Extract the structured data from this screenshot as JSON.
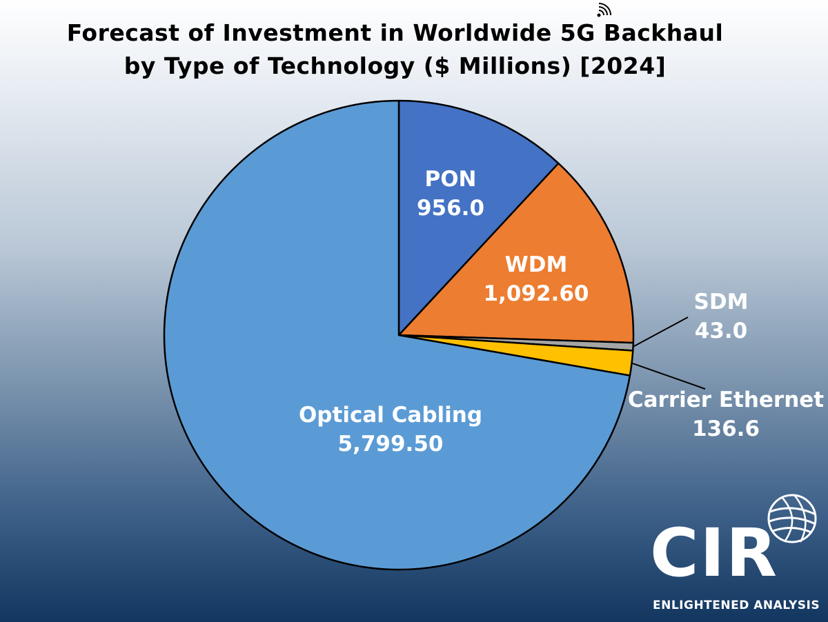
{
  "title_line1": "Forecast of Investment in Worldwide 5G Backhaul",
  "title_line2": "by Type of Technology  ($ Millions) [2024]",
  "logo": {
    "name": "CIR",
    "tagline": "ENLIGHTENED ANALYSIS"
  },
  "chart_data": {
    "type": "pie",
    "title": "Forecast of Investment in Worldwide 5G Backhaul by Type of Technology  ($ Millions) [2024]",
    "unit": "$ Millions",
    "slices": [
      {
        "name": "PON",
        "value": 956.0,
        "label": "956.0",
        "color": "#4472C4"
      },
      {
        "name": "WDM",
        "value": 1092.6,
        "label": "1,092.60",
        "color": "#ED7D31"
      },
      {
        "name": "SDM",
        "value": 43.0,
        "label": "43.0",
        "color": "#A5A5A5"
      },
      {
        "name": "Carrier Ethernet",
        "value": 136.6,
        "label": "136.6",
        "color": "#FFC000"
      },
      {
        "name": "Optical Cabling",
        "value": 5799.5,
        "label": "5,799.50",
        "color": "#5B9BD5"
      }
    ]
  }
}
